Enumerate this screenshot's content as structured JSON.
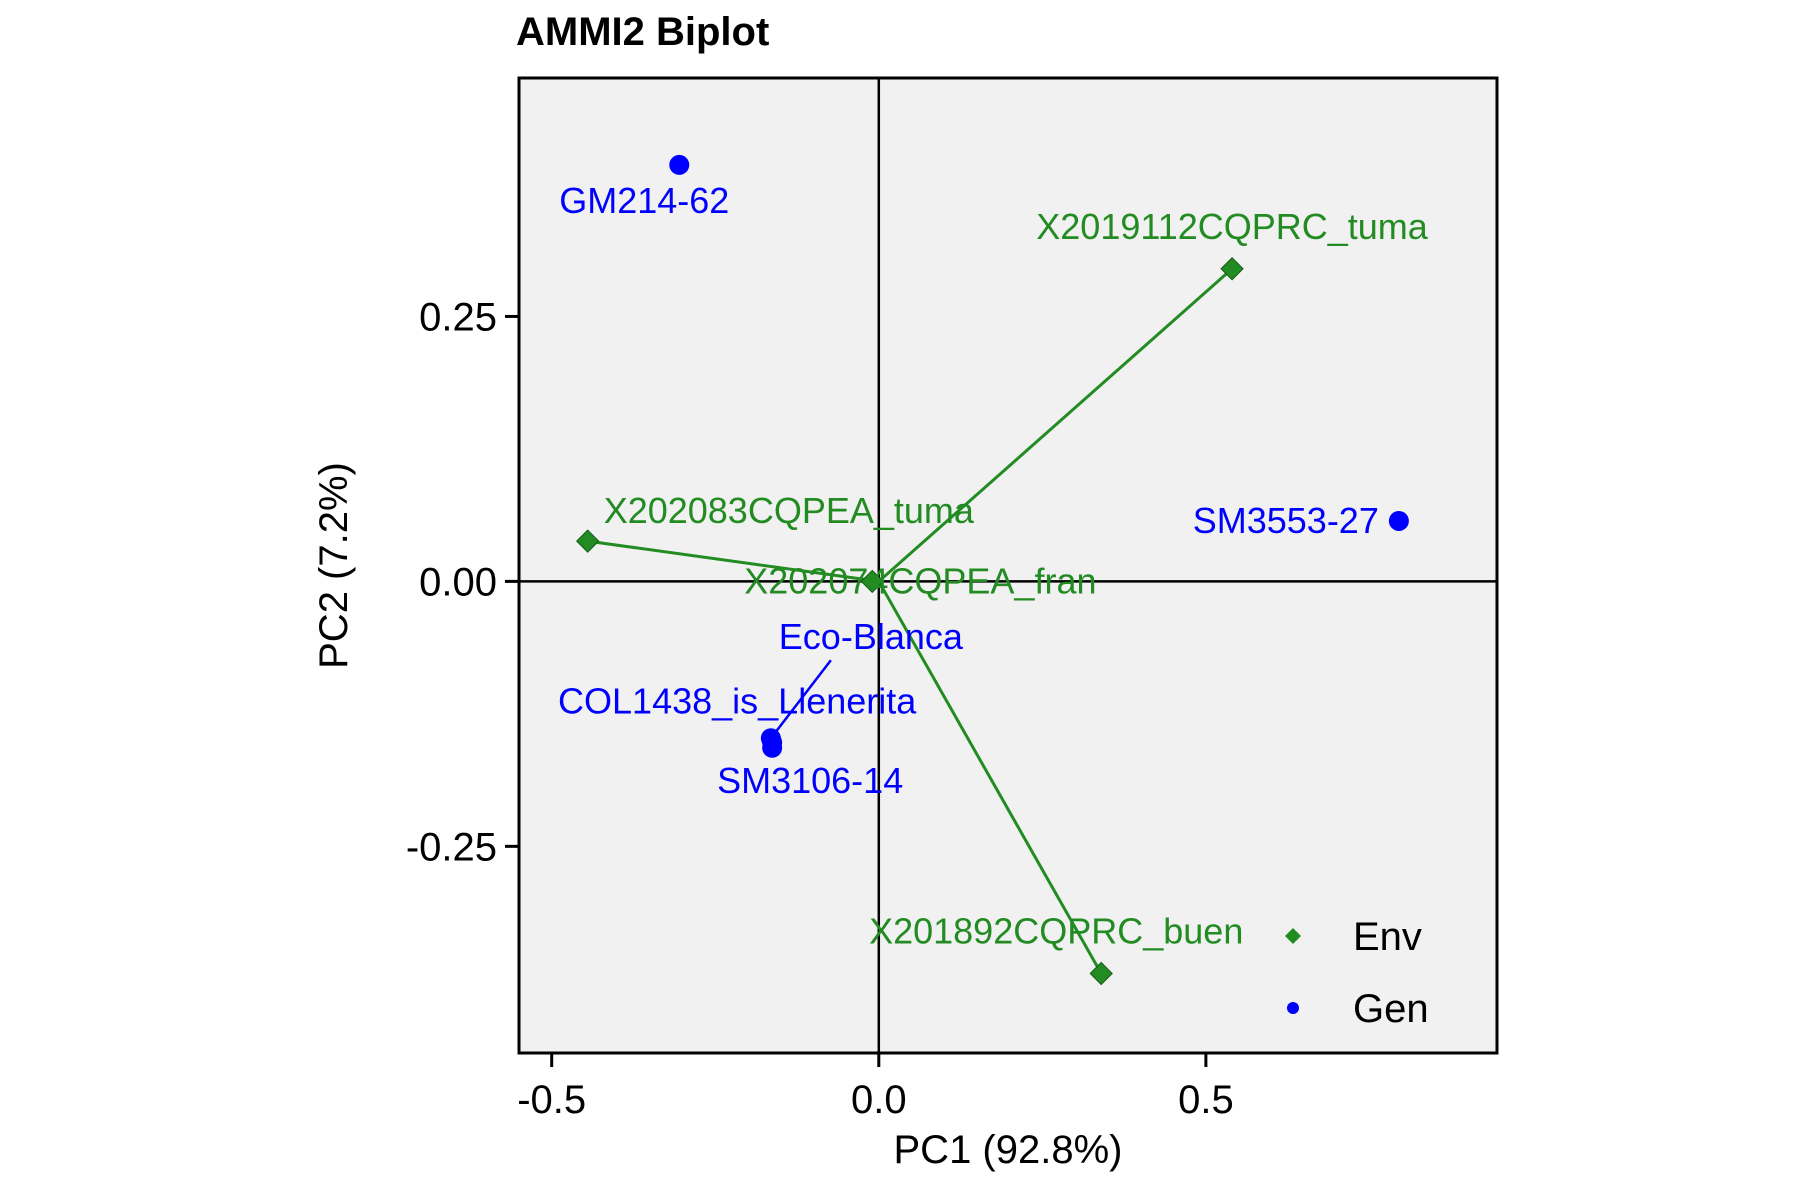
{
  "chart_data": {
    "type": "scatter",
    "title": "AMMI2 Biplot",
    "xlabel": "PC1 (92.8%)",
    "ylabel": "PC2 (7.2%)",
    "xlim": [
      -0.55,
      0.945
    ],
    "ylim": [
      -0.445,
      0.475
    ],
    "x_ticks": [
      -0.5,
      0.0,
      0.5
    ],
    "x_tick_labels": [
      "-0.5",
      "0.0",
      "0.5"
    ],
    "y_ticks": [
      -0.25,
      0.0,
      0.25
    ],
    "y_tick_labels": [
      "-0.25",
      "0.00",
      "0.25"
    ],
    "reference_lines": {
      "x": 0,
      "y": 0
    },
    "grid": false,
    "legend_position": "bottom-right",
    "series": [
      {
        "name": "Env",
        "color": "#228B22",
        "marker": "diamond",
        "vectors_from_origin": true,
        "points": [
          {
            "label": "X2019112CQPRC_tuma",
            "x": 0.54,
            "y": 0.295
          },
          {
            "label": "X202083CQPEA_tuma",
            "x": -0.445,
            "y": 0.038
          },
          {
            "label": "X202074CQPEA_fran",
            "x": -0.01,
            "y": 0.0
          },
          {
            "label": "X201892CQPRC_buen",
            "x": 0.34,
            "y": -0.37
          }
        ]
      },
      {
        "name": "Gen",
        "color": "#0000FF",
        "marker": "circle",
        "points": [
          {
            "label": "GM214-62",
            "x": -0.305,
            "y": 0.393
          },
          {
            "label": "SM3553-27",
            "x": 0.795,
            "y": 0.057
          },
          {
            "label": "Eco-Blanca",
            "x": -0.165,
            "y": -0.148
          },
          {
            "label": "COL1438_is_Llenerita",
            "x": -0.163,
            "y": -0.152
          },
          {
            "label": "SM3106-14",
            "x": -0.163,
            "y": -0.157
          }
        ]
      }
    ]
  }
}
